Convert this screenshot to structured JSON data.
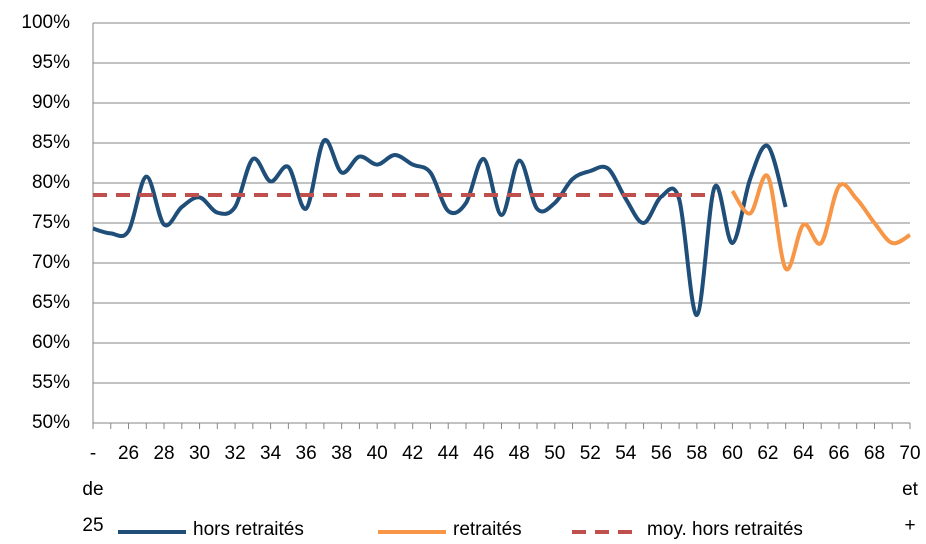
{
  "chart_data": {
    "type": "line",
    "categories": [
      "- de 25",
      null,
      "26",
      null,
      "28",
      null,
      "30",
      null,
      "32",
      null,
      "34",
      null,
      "36",
      null,
      "38",
      null,
      "40",
      null,
      "42",
      null,
      "44",
      null,
      "46",
      null,
      "48",
      null,
      "50",
      null,
      "52",
      null,
      "54",
      null,
      "56",
      null,
      "58",
      null,
      "60",
      null,
      "62",
      null,
      "64",
      null,
      "66",
      null,
      "68",
      null,
      "70 et +"
    ],
    "series": [
      {
        "name": "hors retraités",
        "color": "#1f4e79",
        "dash": false,
        "values": [
          74.3,
          73.7,
          74,
          80.8,
          74.8,
          77,
          78.2,
          76.3,
          77,
          83,
          80.2,
          82,
          76.8,
          85.3,
          81.3,
          83.3,
          82.3,
          83.5,
          82.3,
          81.3,
          76.5,
          77.5,
          83,
          76,
          82.8,
          76.8,
          77.5,
          80.5,
          81.5,
          81.8,
          78,
          75,
          78.3,
          78,
          63.5,
          79.5,
          72.5,
          80.5,
          84.6,
          77,
          null,
          null,
          null,
          null,
          null,
          null,
          null
        ]
      },
      {
        "name": "retraités",
        "color": "#f79646",
        "dash": false,
        "values": [
          null,
          null,
          null,
          null,
          null,
          null,
          null,
          null,
          null,
          null,
          null,
          null,
          null,
          null,
          null,
          null,
          null,
          null,
          null,
          null,
          null,
          null,
          null,
          null,
          null,
          null,
          null,
          null,
          null,
          null,
          null,
          null,
          null,
          null,
          null,
          null,
          79,
          76.2,
          80.8,
          69.3,
          74.8,
          72.5,
          79.6,
          78,
          75,
          72.5,
          73.5
        ]
      },
      {
        "name": "moy. hors retraités",
        "color": "#c0504d",
        "dash": true,
        "values": [
          78.5,
          78.5,
          78.5,
          78.5,
          78.5,
          78.5,
          78.5,
          78.5,
          78.5,
          78.5,
          78.5,
          78.5,
          78.5,
          78.5,
          78.5,
          78.5,
          78.5,
          78.5,
          78.5,
          78.5,
          78.5,
          78.5,
          78.5,
          78.5,
          78.5,
          78.5,
          78.5,
          78.5,
          78.5,
          78.5,
          78.5,
          78.5,
          78.5,
          78.5,
          78.5,
          78.5,
          null,
          null,
          null,
          null,
          null,
          null,
          null,
          null,
          null,
          null,
          null
        ]
      }
    ],
    "ylim": [
      50,
      100
    ],
    "yticks": [
      {
        "value": 50,
        "label": "50%"
      },
      {
        "value": 55,
        "label": "55%"
      },
      {
        "value": 60,
        "label": "60%"
      },
      {
        "value": 65,
        "label": "65%"
      },
      {
        "value": 70,
        "label": "70%"
      },
      {
        "value": 75,
        "label": "75%"
      },
      {
        "value": 80,
        "label": "80%"
      },
      {
        "value": 85,
        "label": "85%"
      },
      {
        "value": 90,
        "label": "90%"
      },
      {
        "value": 95,
        "label": "95%"
      },
      {
        "value": 100,
        "label": "100%"
      }
    ],
    "grid": true,
    "legend": "bottom"
  }
}
